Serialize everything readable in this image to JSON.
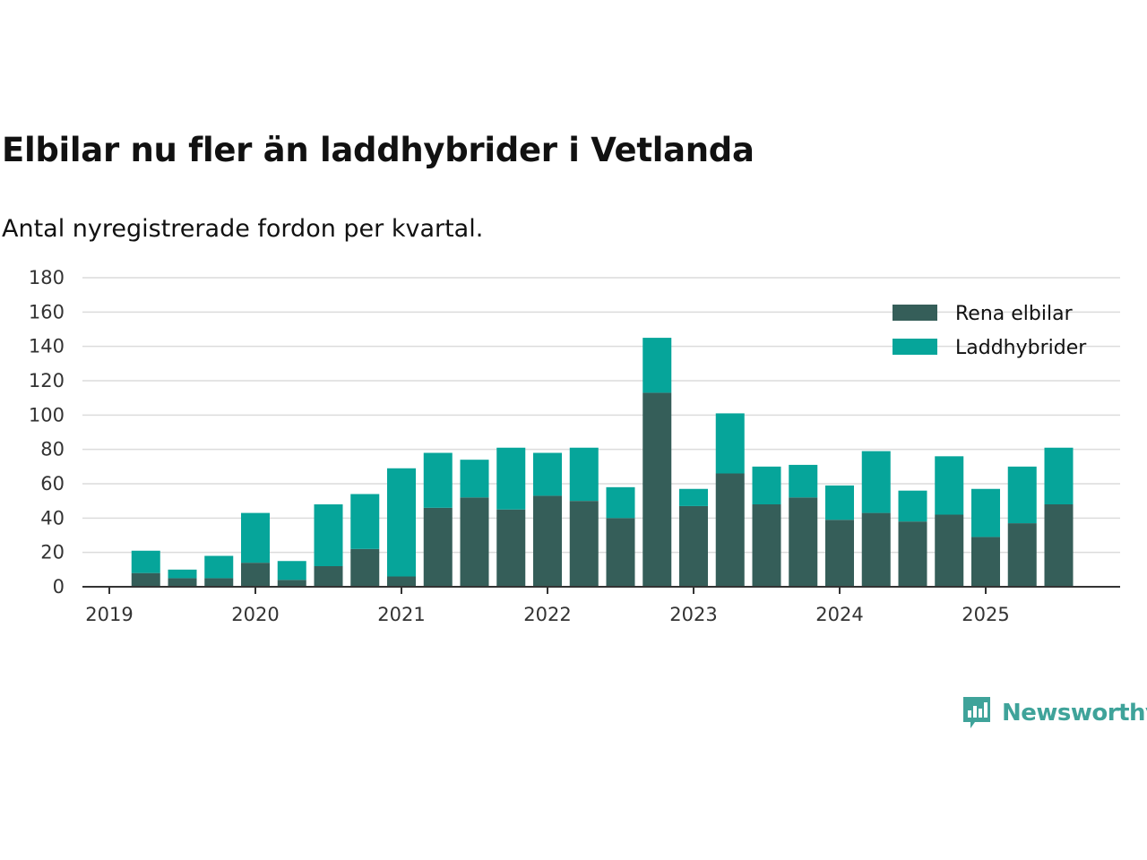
{
  "title": "Elbilar nu fler än laddhybrider i Vetlanda",
  "subtitle": "Antal nyregistrerade fordon per kvartal.",
  "brand": {
    "name": "Newsworthy",
    "icon": "newsworthy-logo-icon",
    "color": "#3fa39a"
  },
  "colors": {
    "elbilar": "#355e59",
    "laddhybrider": "#06a59a"
  },
  "chart_data": {
    "type": "bar",
    "stacked": true,
    "title": "Elbilar nu fler än laddhybrider i Vetlanda",
    "subtitle": "Antal nyregistrerade fordon per kvartal.",
    "xlabel": "",
    "ylabel": "",
    "ylim": [
      0,
      180
    ],
    "yticks": [
      0,
      20,
      40,
      60,
      80,
      100,
      120,
      140,
      160,
      180
    ],
    "grid": true,
    "legend_position": "top-right",
    "xticks": [
      "2019",
      "2020",
      "2021",
      "2022",
      "2023",
      "2024",
      "2025"
    ],
    "categories": [
      "2019-Q2",
      "2019-Q3",
      "2019-Q4",
      "2020-Q1",
      "2020-Q2",
      "2020-Q3",
      "2020-Q4",
      "2021-Q1",
      "2021-Q2",
      "2021-Q3",
      "2021-Q4",
      "2022-Q1",
      "2022-Q2",
      "2022-Q3",
      "2022-Q4",
      "2023-Q1",
      "2023-Q2",
      "2023-Q3",
      "2023-Q4",
      "2024-Q1",
      "2024-Q2",
      "2024-Q3",
      "2024-Q4",
      "2025-Q1",
      "2025-Q2",
      "2025-Q3"
    ],
    "series": [
      {
        "name": "Rena elbilar",
        "values": [
          8,
          5,
          5,
          14,
          4,
          12,
          22,
          6,
          46,
          52,
          45,
          53,
          50,
          40,
          113,
          47,
          66,
          48,
          52,
          39,
          43,
          38,
          42,
          29,
          37,
          48
        ]
      },
      {
        "name": "Laddhybrider",
        "values": [
          13,
          5,
          13,
          29,
          11,
          36,
          32,
          63,
          32,
          22,
          36,
          25,
          31,
          18,
          32,
          10,
          35,
          22,
          19,
          20,
          36,
          18,
          34,
          28,
          33,
          33
        ]
      }
    ]
  }
}
